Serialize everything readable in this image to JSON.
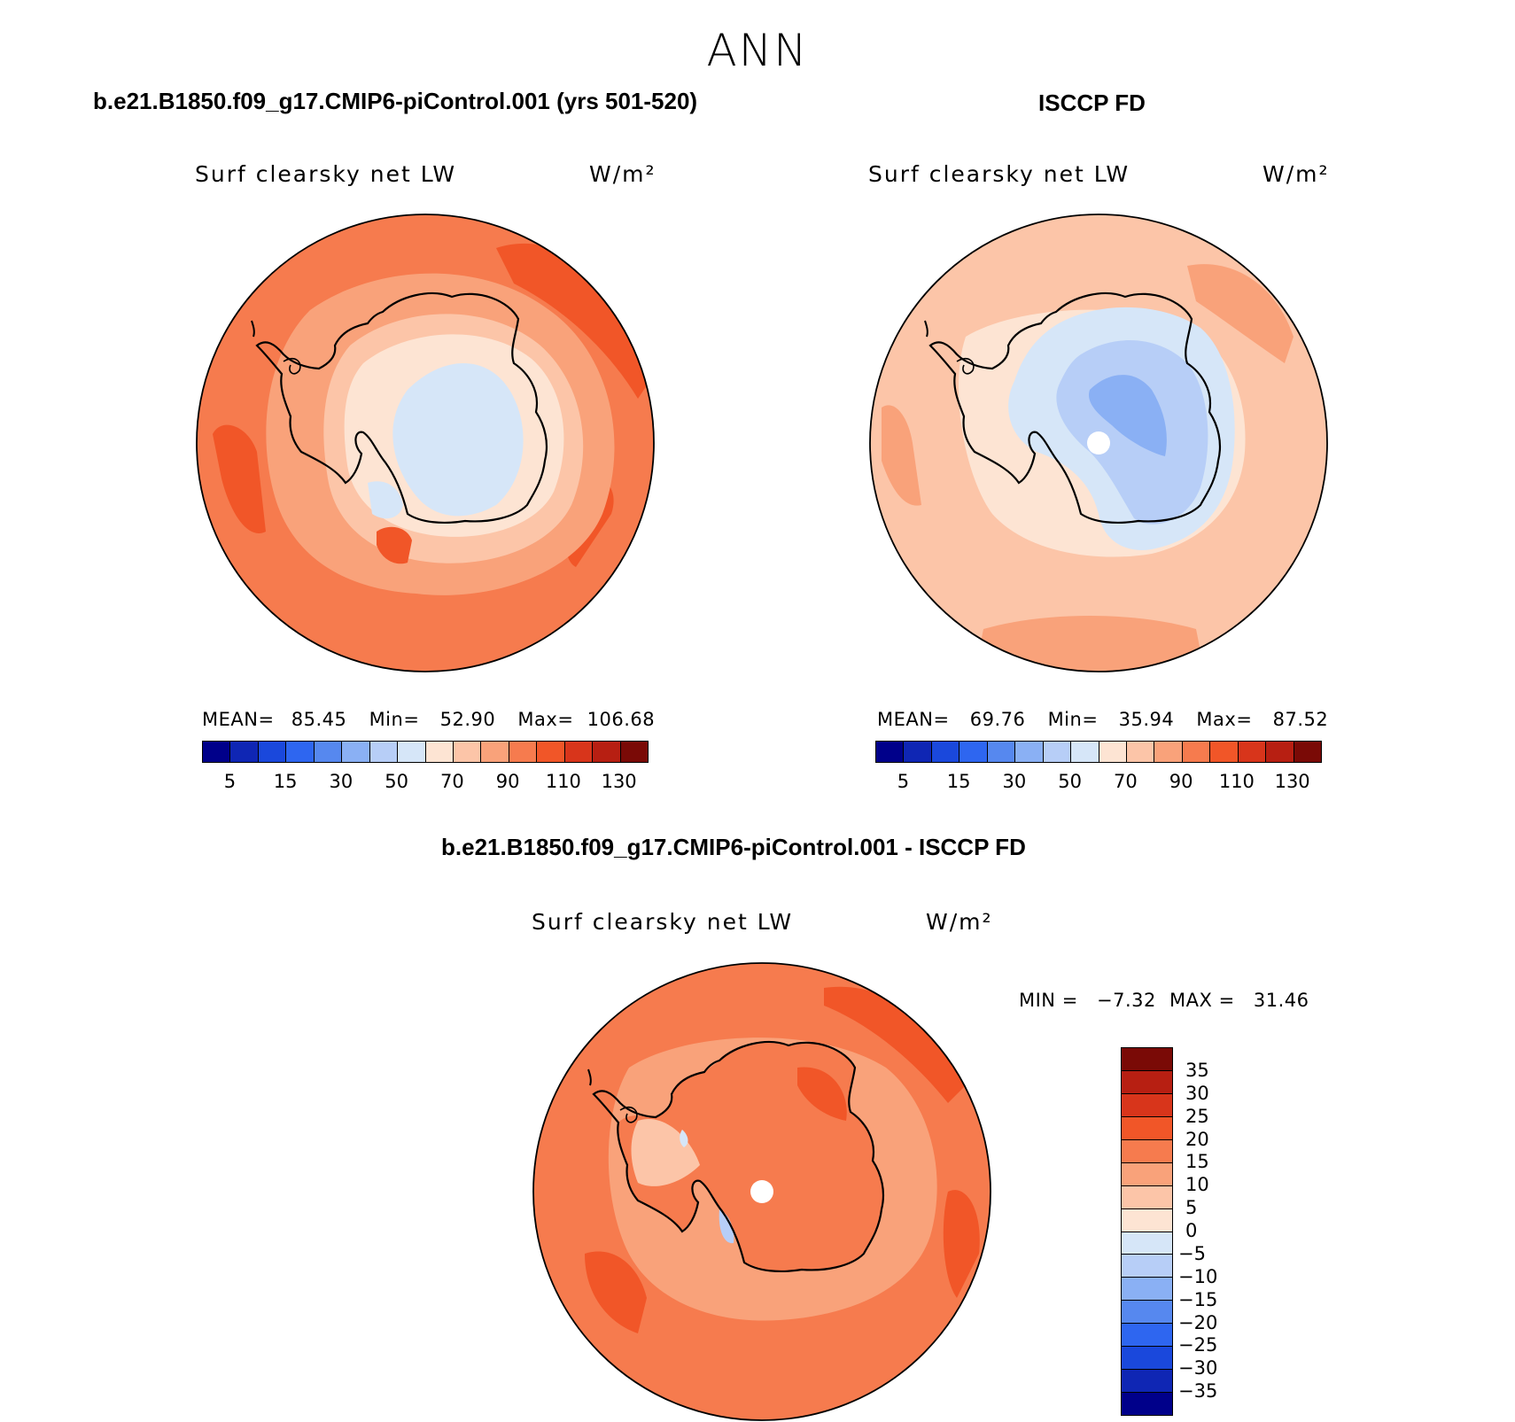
{
  "season": "ANN",
  "panels": {
    "model": {
      "title": "b.e21.B1850.f09_g17.CMIP6-piControl.001 (yrs 501-520)",
      "variable": "Surf clearsky net LW",
      "units": "W/m²",
      "mean_label": "MEAN=",
      "mean": "85.45",
      "min_label": "Min=",
      "min": "52.90",
      "max_label": "Max=",
      "max": "106.68"
    },
    "obs": {
      "title": "ISCCP FD",
      "variable": "Surf clearsky net LW",
      "units": "W/m²",
      "mean_label": "MEAN=",
      "mean": "69.76",
      "min_label": "Min=",
      "min": "35.94",
      "max_label": "Max=",
      "max": "87.52"
    },
    "diff": {
      "title": "b.e21.B1850.f09_g17.CMIP6-piControl.001 - ISCCP FD",
      "variable": "Surf clearsky net LW",
      "units": "W/m²",
      "min_label": "MIN =",
      "min": "−7.32",
      "max_label": "MAX =",
      "max": "31.46"
    }
  },
  "abs_colorbar": {
    "ticks": [
      "5",
      "15",
      "30",
      "50",
      "70",
      "90",
      "110",
      "130"
    ],
    "colors": [
      "#00008a",
      "#0f26b4",
      "#1a48dc",
      "#2e66f0",
      "#5688ef",
      "#8ab0f4",
      "#b7cef7",
      "#d6e6f8",
      "#fde4d3",
      "#fcc5a8",
      "#f9a27a",
      "#f67b4e",
      "#f15628",
      "#d8351b",
      "#b71f12",
      "#7a0a06"
    ]
  },
  "diff_colorbar": {
    "labels": [
      "35",
      "30",
      "25",
      "20",
      "15",
      "10",
      "5",
      "0",
      "−5",
      "−10",
      "−15",
      "−20",
      "−25",
      "−30",
      "−35"
    ],
    "colors": [
      "#7a0a06",
      "#b71f12",
      "#d8351b",
      "#f15628",
      "#f67b4e",
      "#f9a27a",
      "#fcc5a8",
      "#fde4d3",
      "#d6e6f8",
      "#b7cef7",
      "#8ab0f4",
      "#5688ef",
      "#2e66f0",
      "#1a48dc",
      "#0f26b4",
      "#00008a"
    ]
  }
}
